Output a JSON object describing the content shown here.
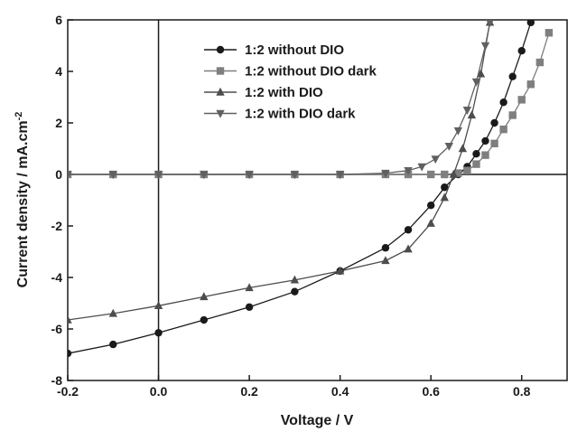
{
  "chart_data": {
    "type": "line",
    "xlabel": "Voltage / V",
    "ylabel": "Current density / mA.cm",
    "ylabel_superscript": "-2",
    "xlim": [
      -0.2,
      0.9
    ],
    "ylim": [
      -8,
      6
    ],
    "xticks": [
      -0.2,
      0.0,
      0.2,
      0.4,
      0.6,
      0.8
    ],
    "xtick_labels": [
      "-0.2",
      "0.0",
      "0.2",
      "0.4",
      "0.6",
      "0.8"
    ],
    "yticks": [
      -8,
      -6,
      -4,
      -2,
      0,
      2,
      4,
      6
    ],
    "ytick_labels": [
      "-8",
      "-6",
      "-4",
      "-2",
      "0",
      "2",
      "4",
      "6"
    ],
    "reference_lines": {
      "x": 0,
      "y": 0
    },
    "legend_position": "top-center",
    "series": [
      {
        "name": "1:2 without DIO",
        "marker": "circle",
        "color": "#1a1a1a",
        "x": [
          -0.2,
          -0.1,
          0.0,
          0.1,
          0.2,
          0.3,
          0.4,
          0.5,
          0.55,
          0.6,
          0.63,
          0.66,
          0.68,
          0.7,
          0.72,
          0.74,
          0.76,
          0.78,
          0.8,
          0.82
        ],
        "y": [
          -6.95,
          -6.6,
          -6.15,
          -5.65,
          -5.15,
          -4.55,
          -3.75,
          -2.85,
          -2.15,
          -1.2,
          -0.5,
          0.0,
          0.3,
          0.8,
          1.3,
          2.0,
          2.8,
          3.8,
          4.8,
          5.9
        ]
      },
      {
        "name": "1:2 without DIO dark",
        "marker": "square",
        "color": "#7f7f7f",
        "x": [
          -0.2,
          -0.1,
          0.0,
          0.1,
          0.2,
          0.3,
          0.4,
          0.5,
          0.55,
          0.6,
          0.63,
          0.66,
          0.68,
          0.7,
          0.72,
          0.74,
          0.76,
          0.78,
          0.8,
          0.82,
          0.84,
          0.86
        ],
        "y": [
          0.0,
          0.0,
          0.0,
          0.0,
          0.0,
          0.0,
          0.0,
          0.0,
          0.0,
          0.0,
          0.0,
          0.05,
          0.15,
          0.4,
          0.75,
          1.2,
          1.75,
          2.3,
          2.9,
          3.5,
          4.35,
          5.5
        ]
      },
      {
        "name": "1:2 with DIO",
        "marker": "triangle-up",
        "color": "#4d4d4d",
        "x": [
          -0.2,
          -0.1,
          0.0,
          0.1,
          0.2,
          0.3,
          0.4,
          0.5,
          0.55,
          0.6,
          0.63,
          0.65,
          0.67,
          0.69,
          0.71,
          0.73
        ],
        "y": [
          -5.65,
          -5.4,
          -5.1,
          -4.75,
          -4.4,
          -4.1,
          -3.75,
          -3.35,
          -2.9,
          -1.9,
          -0.9,
          0.0,
          1.0,
          2.3,
          3.9,
          5.9
        ]
      },
      {
        "name": "1:2 with DIO dark",
        "marker": "triangle-down",
        "color": "#606060",
        "x": [
          -0.2,
          -0.1,
          0.0,
          0.1,
          0.2,
          0.3,
          0.4,
          0.5,
          0.55,
          0.58,
          0.61,
          0.64,
          0.66,
          0.68,
          0.7,
          0.72,
          0.73
        ],
        "y": [
          0.0,
          0.0,
          0.0,
          0.0,
          0.0,
          0.0,
          0.0,
          0.05,
          0.15,
          0.3,
          0.6,
          1.1,
          1.7,
          2.5,
          3.6,
          5.0,
          5.9
        ]
      }
    ]
  }
}
